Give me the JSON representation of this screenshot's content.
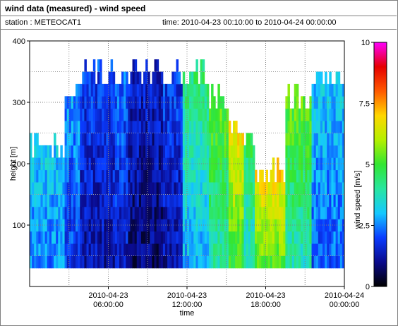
{
  "header": {
    "title": "wind data (measured) - wind speed",
    "station": "station : METEOCAT1",
    "time_range": "time: 2010-04-23 00:10:00 to 2010-04-24 00:00:00"
  },
  "chart_data": {
    "type": "heatmap",
    "xlabel": "time",
    "ylabel": "height [m]",
    "colorbar_label": "wind speed [m/s]",
    "ylim": [
      0,
      400
    ],
    "xlim_hours": [
      0,
      24
    ],
    "colorbar_range": [
      0,
      10
    ],
    "y_ticks": [
      {
        "value": 100,
        "label": "100"
      },
      {
        "value": 200,
        "label": "200"
      },
      {
        "value": 300,
        "label": "300"
      },
      {
        "value": 400,
        "label": "400"
      }
    ],
    "x_ticks": [
      {
        "hour": 6,
        "line1": "2010-04-23",
        "line2": "06:00:00"
      },
      {
        "hour": 12,
        "line1": "2010-04-23",
        "line2": "12:00:00"
      },
      {
        "hour": 18,
        "line1": "2010-04-23",
        "line2": "18:00:00"
      },
      {
        "hour": 24,
        "line1": "2010-04-24",
        "line2": "00:00:00"
      }
    ],
    "colorbar_ticks": [
      {
        "value": 0,
        "label": "0"
      },
      {
        "value": 2.5,
        "label": "2.5"
      },
      {
        "value": 5,
        "label": "5"
      },
      {
        "value": 7.5,
        "label": "7.5"
      },
      {
        "value": 10,
        "label": "10"
      }
    ],
    "height_levels_m": [
      40,
      60,
      80,
      100,
      120,
      140,
      160,
      180,
      200,
      220,
      240,
      260,
      280,
      300,
      320,
      340,
      360
    ],
    "column_profiles": [
      {
        "from_hour": 0.0,
        "to_hour": 2.5,
        "top_m": 250,
        "speed_low": 2.5,
        "speed_high": 3.2
      },
      {
        "from_hour": 2.5,
        "to_hour": 3.7,
        "top_m": 340,
        "speed_low": 1.8,
        "speed_high": 2.8
      },
      {
        "from_hour": 3.7,
        "to_hour": 6.5,
        "top_m": 370,
        "speed_low": 1.2,
        "speed_high": 2.0
      },
      {
        "from_hour": 6.5,
        "to_hour": 7.5,
        "top_m": 360,
        "speed_low": 1.4,
        "speed_high": 2.4
      },
      {
        "from_hour": 7.5,
        "to_hour": 10.0,
        "top_m": 370,
        "speed_low": 0.8,
        "speed_high": 1.6
      },
      {
        "from_hour": 10.0,
        "to_hour": 11.5,
        "top_m": 370,
        "speed_low": 1.2,
        "speed_high": 2.0
      },
      {
        "from_hour": 11.5,
        "to_hour": 13.5,
        "top_m": 370,
        "speed_low": 2.8,
        "speed_high": 4.5
      },
      {
        "from_hour": 13.5,
        "to_hour": 15.0,
        "top_m": 330,
        "speed_low": 3.8,
        "speed_high": 5.5
      },
      {
        "from_hour": 15.0,
        "to_hour": 16.2,
        "top_m": 280,
        "speed_low": 5.0,
        "speed_high": 7.0
      },
      {
        "from_hour": 16.2,
        "to_hour": 17.0,
        "top_m": 260,
        "speed_low": 3.5,
        "speed_high": 4.8
      },
      {
        "from_hour": 17.0,
        "to_hour": 19.5,
        "top_m": 210,
        "speed_low": 5.2,
        "speed_high": 7.2
      },
      {
        "from_hour": 19.5,
        "to_hour": 21.5,
        "top_m": 330,
        "speed_low": 3.8,
        "speed_high": 5.5
      },
      {
        "from_hour": 21.5,
        "to_hour": 24.0,
        "top_m": 360,
        "speed_low": 2.2,
        "speed_high": 3.2
      }
    ]
  }
}
